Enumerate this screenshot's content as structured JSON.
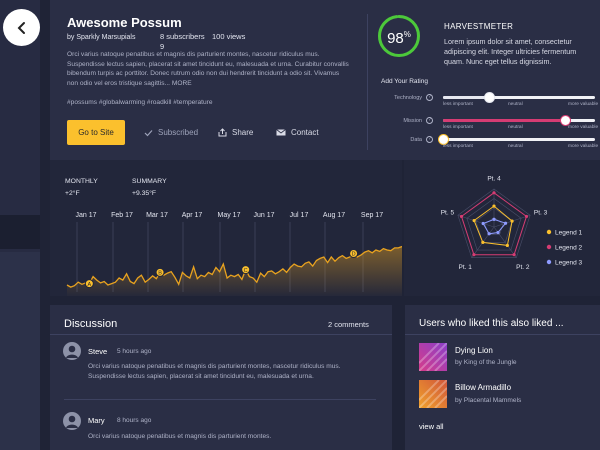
{
  "product": {
    "title": "Awesome Possum",
    "byline": "by Sparkly Marsupials",
    "subscribers_label": "8 subscribers",
    "views_label": "100 views",
    "subscribers_extra": "9",
    "description": "Orci varius natoque penatibus et magnis dis parturient montes, nascetur ridiculus mus. Suspendisse lectus sapien, placerat sit amet tincidunt eu, malesuada et urna. Curabitur convallis bibendum turpis ac porttitor. Donec rutrum odio non dui hendrerit tincidunt a odio sit. Vivamus non odio vel eros tristique sagittis... MORE",
    "tags": "#possums #globalwarming #roadkill #temperature"
  },
  "actions": {
    "go_to_site": "Go to Site",
    "subscribed": "Subscribed",
    "share": "Share",
    "contact": "Contact"
  },
  "harvestmeter": {
    "score_value": "98",
    "score_unit": "%",
    "score_fraction": 0.98,
    "title": "HARVESTMETER",
    "description": "Lorem ipsum dolor sit amet, consectetur adipiscing elit. Integer ultricies fermentum quam. Nunc eget tellus dignissim.",
    "add_rating": "Add Your Rating",
    "tick_labels": [
      "less important",
      "neutral",
      "more valuable"
    ],
    "sliders": [
      {
        "label": "Technology",
        "value": 0.3,
        "color": "#e6e8f0"
      },
      {
        "label": "Mission",
        "value": 0.8,
        "color": "#d63c73"
      },
      {
        "label": "Data",
        "value": 0.0,
        "color": "#fbc02d"
      }
    ]
  },
  "chart_data": [
    {
      "type": "area",
      "title": "",
      "xlabel": "",
      "ylabel": "",
      "x_tick_labels": [
        "Jan 17",
        "Feb 17",
        "Mar 17",
        "Apr 17",
        "May 17",
        "Jun 17",
        "Jul 17",
        "Aug 17",
        "Sep 17"
      ],
      "series": [
        {
          "values": [
            10,
            7,
            9,
            14,
            11,
            13,
            12,
            22,
            17,
            13,
            15,
            10,
            12,
            14,
            20,
            17,
            26,
            15,
            12,
            20,
            24,
            14,
            18,
            23,
            19,
            28,
            24,
            27,
            29,
            21,
            11,
            28,
            23,
            20,
            36,
            19,
            24,
            22,
            28,
            25,
            35,
            29,
            40,
            20,
            24,
            22,
            25,
            18,
            32,
            22,
            20,
            14,
            27,
            22,
            29,
            30,
            26,
            29,
            33,
            28,
            35,
            40,
            37,
            36,
            41,
            43,
            37,
            45,
            48,
            50,
            42,
            50,
            44,
            49,
            52,
            48,
            50,
            55,
            50,
            53,
            57,
            59,
            56,
            60,
            58,
            62,
            60,
            59,
            63,
            63,
            65
          ]
        }
      ],
      "markers": [
        {
          "label": "A",
          "index": 6
        },
        {
          "label": "B",
          "index": 25
        },
        {
          "label": "C",
          "index": 48
        },
        {
          "label": "D",
          "index": 77
        }
      ],
      "ylim": [
        0,
        100
      ],
      "monthly_label": "MONTHLY",
      "monthly_value": "+2°F",
      "summary_label": "SUMMARY",
      "summary_value": "+9.35°F",
      "fill_color": "#e8a21f"
    },
    {
      "type": "radar",
      "axes": [
        "Pt. 4",
        "Pt. 3",
        "Pt. 2",
        "Pt. 1",
        "Pt. 5"
      ],
      "range": [
        0,
        100
      ],
      "series": [
        {
          "name": "Legend 1",
          "color": "#fbc02d",
          "values": [
            55,
            50,
            60,
            50,
            55
          ]
        },
        {
          "name": "Legend 2",
          "color": "#d63c73",
          "values": [
            90,
            90,
            90,
            90,
            90
          ]
        },
        {
          "name": "Legend 3",
          "color": "#8e9bff",
          "values": [
            20,
            32,
            18,
            22,
            30
          ]
        }
      ]
    }
  ],
  "discussion": {
    "title": "Discussion",
    "count_label": "2 comments",
    "comments": [
      {
        "name": "Steve",
        "time": "5 hours ago",
        "text": "Orci varius natoque penatibus et magnis dis parturient montes, nascetur ridiculus mus. Suspendisse lectus sapien, placerat sit amet tincidunt eu, malesuada et urna."
      },
      {
        "name": "Mary",
        "time": "8 hours ago",
        "text": "Orci varius natoque penatibus et magnis dis parturient montes."
      }
    ]
  },
  "related": {
    "title": "Users who liked this also liked ...",
    "items": [
      {
        "name": "Dying Lion",
        "by": "by King of the Jungle",
        "color_a": "#d63c8a",
        "color_b": "#8a3fc9"
      },
      {
        "name": "Billow Armadillo",
        "by": "by Placental Mammels",
        "color_a": "#f0a12c",
        "color_b": "#d1563a"
      }
    ],
    "view_all": "view all"
  }
}
